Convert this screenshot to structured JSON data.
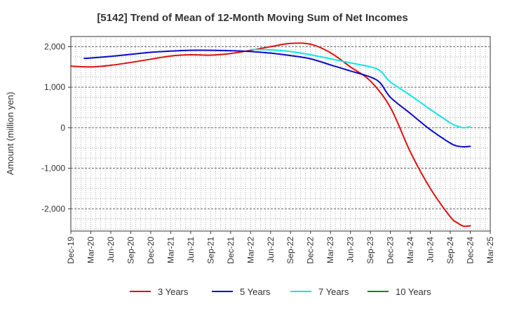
{
  "chart_data": {
    "type": "line",
    "title": "[5142]  Trend of Mean of 12-Month Moving Sum of Net Incomes",
    "ylabel": "Amount (million yen)",
    "xlabel": "",
    "ylim": [
      -2550,
      2250
    ],
    "yticks": [
      2000,
      1000,
      0,
      -1000,
      -2000
    ],
    "ytick_labels": [
      "2,000",
      "1,000",
      "0",
      "-1,000",
      "-2,000"
    ],
    "xtick_labels": [
      "Dec-19",
      "Mar-20",
      "Jun-20",
      "Sep-20",
      "Dec-20",
      "Mar-21",
      "Jun-21",
      "Sep-21",
      "Dec-21",
      "Mar-22",
      "Jun-22",
      "Sep-22",
      "Dec-22",
      "Mar-23",
      "Jun-23",
      "Sep-23",
      "Dec-23",
      "Mar-24",
      "Jun-24",
      "Sep-24",
      "Dec-24",
      "Mar-25"
    ],
    "grid": true,
    "legend_position": "bottom",
    "series": [
      {
        "name": "3 Years",
        "color": "#dd1111",
        "points": [
          [
            0,
            1520
          ],
          [
            1,
            1500
          ],
          [
            2,
            1540
          ],
          [
            3,
            1610
          ],
          [
            4,
            1690
          ],
          [
            5,
            1770
          ],
          [
            6,
            1800
          ],
          [
            7,
            1790
          ],
          [
            8,
            1830
          ],
          [
            9,
            1910
          ],
          [
            10,
            2000
          ],
          [
            11,
            2080
          ],
          [
            12,
            2060
          ],
          [
            13,
            1850
          ],
          [
            14,
            1500
          ],
          [
            15,
            1150
          ],
          [
            16,
            500
          ],
          [
            17,
            -600
          ],
          [
            18,
            -1500
          ],
          [
            19,
            -2200
          ],
          [
            19.33,
            -2340
          ],
          [
            19.67,
            -2430
          ],
          [
            20,
            -2420
          ]
        ]
      },
      {
        "name": "5 Years",
        "color": "#0a0acc",
        "points": [
          [
            0.67,
            1710
          ],
          [
            1,
            1720
          ],
          [
            2,
            1760
          ],
          [
            3,
            1810
          ],
          [
            4,
            1860
          ],
          [
            5,
            1890
          ],
          [
            6,
            1910
          ],
          [
            7,
            1910
          ],
          [
            8,
            1900
          ],
          [
            9,
            1880
          ],
          [
            10,
            1840
          ],
          [
            11,
            1780
          ],
          [
            12,
            1700
          ],
          [
            13,
            1550
          ],
          [
            14,
            1400
          ],
          [
            15,
            1250
          ],
          [
            15.5,
            1100
          ],
          [
            16,
            750
          ],
          [
            17,
            350
          ],
          [
            18,
            -50
          ],
          [
            19,
            -380
          ],
          [
            19.33,
            -450
          ],
          [
            19.67,
            -470
          ],
          [
            20,
            -460
          ]
        ]
      },
      {
        "name": "7 Years",
        "color": "#11e5e5",
        "points": [
          [
            9,
            1930
          ],
          [
            10,
            1920
          ],
          [
            11,
            1880
          ],
          [
            12,
            1800
          ],
          [
            13,
            1700
          ],
          [
            14,
            1600
          ],
          [
            15,
            1500
          ],
          [
            15.5,
            1400
          ],
          [
            16,
            1130
          ],
          [
            17,
            800
          ],
          [
            18,
            450
          ],
          [
            19,
            120
          ],
          [
            19.33,
            40
          ],
          [
            19.67,
            0
          ],
          [
            20,
            20
          ]
        ]
      },
      {
        "name": "10 Years",
        "color": "#118811",
        "points": []
      }
    ]
  }
}
